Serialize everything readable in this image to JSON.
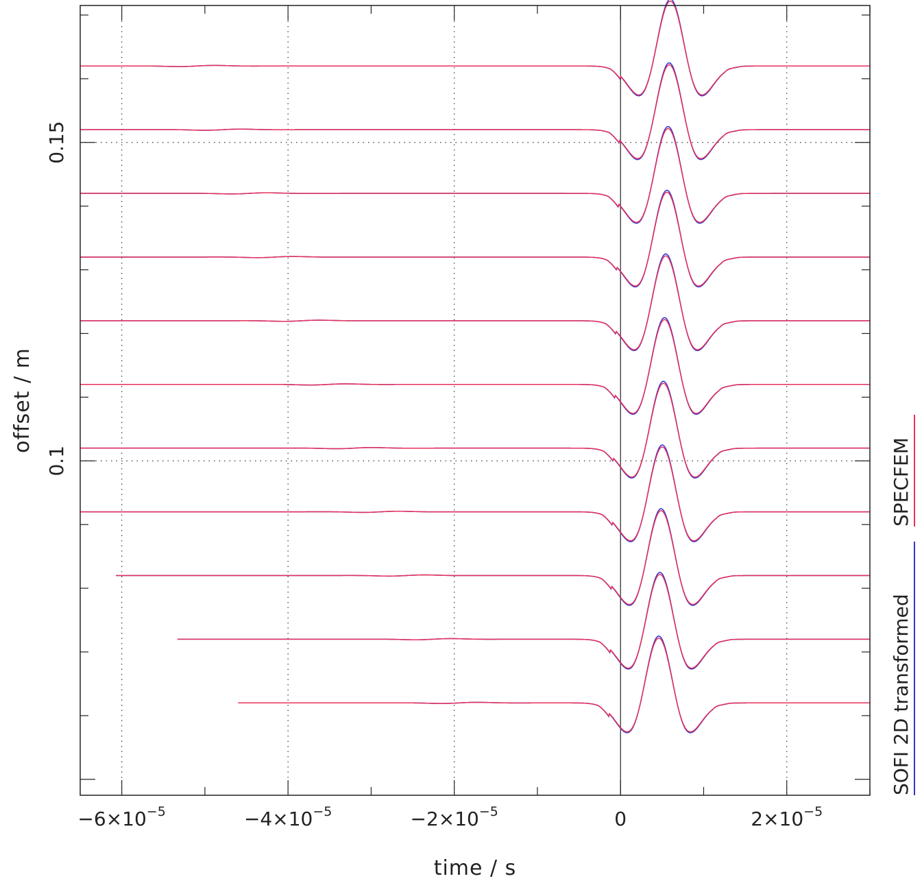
{
  "chart_data": {
    "type": "line",
    "xlabel": "time / s",
    "ylabel": "offset / m",
    "xlim": [
      -6.5e-05,
      3e-05
    ],
    "ylim": [
      0.0475,
      0.1715
    ],
    "x_ticks": [
      {
        "value": -6e-05,
        "label": "−6×10",
        "exp": "−5"
      },
      {
        "value": -4e-05,
        "label": "−4×10",
        "exp": "−5"
      },
      {
        "value": -2e-05,
        "label": "−2×10",
        "exp": "−5"
      },
      {
        "value": 0,
        "label": "0",
        "exp": ""
      },
      {
        "value": 2e-05,
        "label": "2×10",
        "exp": "−5"
      }
    ],
    "y_ticks": [
      {
        "value": 0.1,
        "label": "0.1"
      },
      {
        "value": 0.15,
        "label": "0.15"
      }
    ],
    "grid": "dotted at major ticks",
    "legend_position": "right, rotated vertical",
    "series": [
      {
        "name": "SOFI 2D transformed",
        "color": "#3333cc"
      },
      {
        "name": "SPECFEM",
        "color": "#e8305a"
      }
    ],
    "traces": [
      {
        "offset": 0.162,
        "start": -6.5e-05
      },
      {
        "offset": 0.152,
        "start": -6.5e-05
      },
      {
        "offset": 0.142,
        "start": -6.5e-05
      },
      {
        "offset": 0.132,
        "start": -6.5e-05
      },
      {
        "offset": 0.122,
        "start": -6.5e-05
      },
      {
        "offset": 0.112,
        "start": -6.5e-05
      },
      {
        "offset": 0.102,
        "start": -6.5e-05
      },
      {
        "offset": 0.092,
        "start": -6.5e-05
      },
      {
        "offset": 0.082,
        "start": -6.07e-05
      },
      {
        "offset": 0.072,
        "start": -5.33e-05
      },
      {
        "offset": 0.062,
        "start": -4.6e-05
      }
    ],
    "wavelet": {
      "onset": 0.0,
      "trough1": 2.5e-06,
      "peak": 6e-06,
      "trough2": 9.5e-06,
      "end": 1.25e-05
    }
  }
}
